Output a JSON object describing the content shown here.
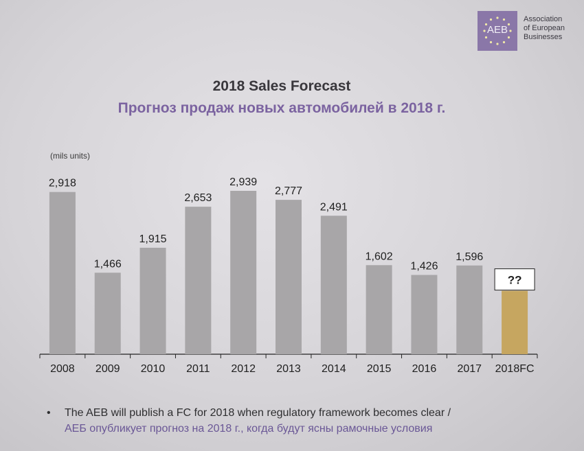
{
  "logo": {
    "abbr": "AEB",
    "name_lines": [
      "Association",
      "of European",
      "Businesses"
    ]
  },
  "title_en": "2018 Sales Forecast",
  "title_ru": "Прогноз продаж новых автомобилей в 2018 г.",
  "unit_label": "(mils units)",
  "chart_data": {
    "type": "bar",
    "categories": [
      "2008",
      "2009",
      "2010",
      "2011",
      "2012",
      "2013",
      "2014",
      "2015",
      "2016",
      "2017",
      "2018FC"
    ],
    "values": [
      2918,
      1466,
      1915,
      2653,
      2939,
      2777,
      2491,
      1602,
      1426,
      1596,
      null
    ],
    "value_labels": [
      "2,918",
      "1,466",
      "1,915",
      "2,653",
      "2,939",
      "2,777",
      "2,491",
      "1,602",
      "1,426",
      "1,596",
      "??"
    ],
    "forecast_placeholder_label": "??",
    "ylim": [
      0,
      3000
    ],
    "grid": false,
    "colors": {
      "bar": "#a8a6a8",
      "forecast": "#c6a660",
      "axis": "#222222"
    }
  },
  "bullet": {
    "symbol": "•",
    "text_en": "The AEB will publish a FC for 2018 when regulatory framework becomes clear /",
    "text_ru": "АЕБ опубликует прогноз на 2018 г., когда будут ясны рамочные условия"
  }
}
